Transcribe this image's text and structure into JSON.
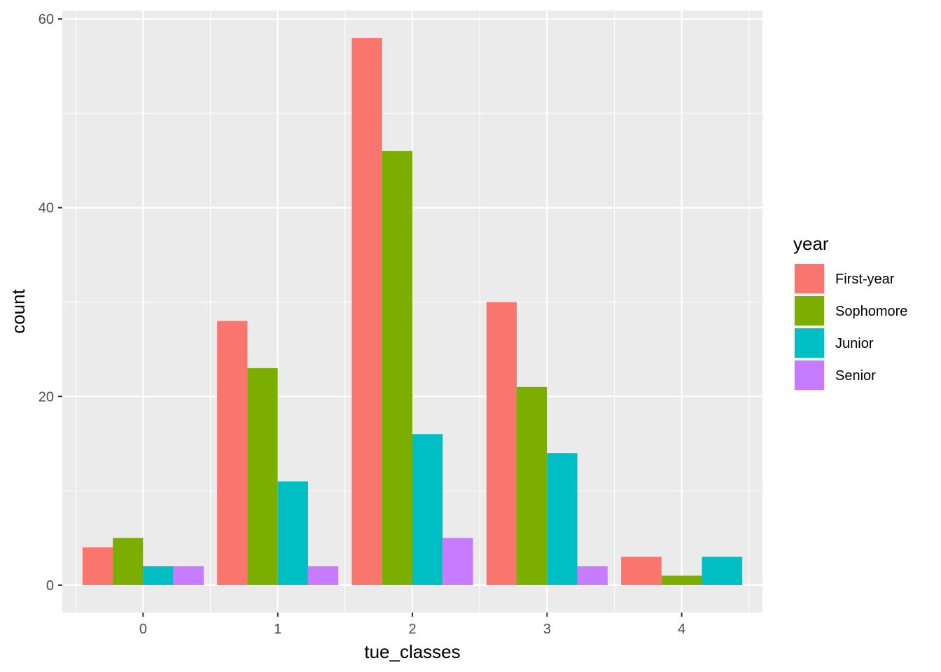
{
  "chart_data": {
    "type": "bar",
    "title": "",
    "xlabel": "tue_classes",
    "ylabel": "count",
    "categories": [
      "0",
      "1",
      "2",
      "3",
      "4"
    ],
    "yticks": [
      0,
      20,
      40,
      60
    ],
    "ylim": [
      -2.9,
      60.9
    ],
    "grid": true,
    "legend": {
      "title": "year",
      "placement": "right"
    },
    "series": [
      {
        "name": "First-year",
        "color": "#F8766D",
        "values": [
          4,
          28,
          58,
          30,
          3
        ]
      },
      {
        "name": "Sophomore",
        "color": "#7CAE00",
        "values": [
          5,
          23,
          46,
          21,
          1
        ]
      },
      {
        "name": "Junior",
        "color": "#00BFC4",
        "values": [
          2,
          11,
          16,
          14,
          3
        ]
      },
      {
        "name": "Senior",
        "color": "#C77CFF",
        "values": [
          2,
          2,
          5,
          2,
          null
        ]
      }
    ]
  }
}
